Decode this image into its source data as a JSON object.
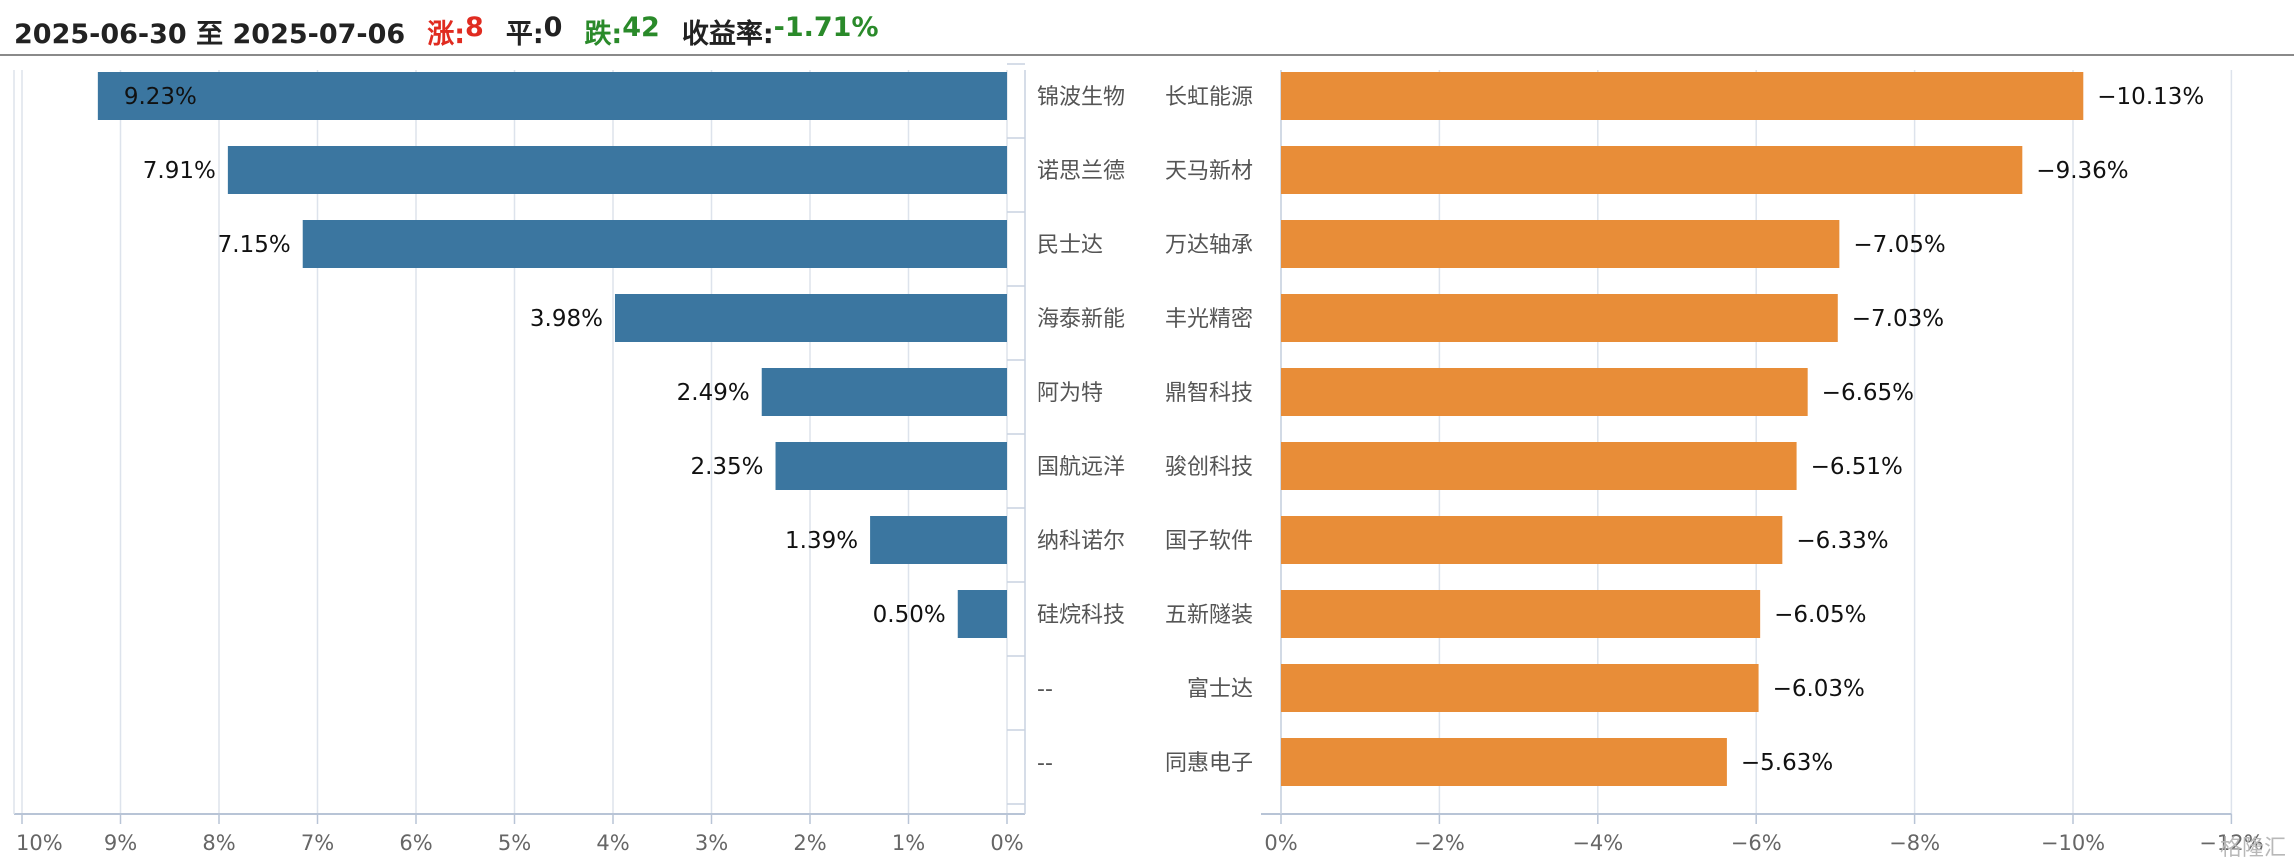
{
  "header": {
    "date_range": "2025-06-30 至 2025-07-06",
    "rise_label": "涨:",
    "rise_count": "8",
    "flat_label": "平:",
    "flat_count": "0",
    "fall_label": "跌:",
    "fall_count": "42",
    "return_label": "收益率:",
    "return_value": "-1.71%"
  },
  "watermark": "格隆汇",
  "chart_data": [
    {
      "type": "bar",
      "orientation": "horizontal",
      "categories": [
        "锦波生物",
        "诺思兰德",
        "民士达",
        "海泰新能",
        "阿为特",
        "国航远洋",
        "纳科诺尔",
        "硅烷科技",
        "--",
        "--"
      ],
      "values": [
        9.23,
        7.91,
        7.15,
        3.98,
        2.49,
        2.35,
        1.39,
        0.5,
        null,
        null
      ],
      "data_labels": [
        "9.23%",
        "7.91%",
        "7.15%",
        "3.98%",
        "2.49%",
        "2.35%",
        "1.39%",
        "0.50%",
        "",
        ""
      ],
      "xlim": [
        10,
        0
      ],
      "ticks": [
        10,
        9,
        8,
        7,
        6,
        5,
        4,
        3,
        2,
        1,
        0
      ],
      "tick_labels": [
        "10%",
        "9%",
        "8%",
        "7%",
        "6%",
        "5%",
        "4%",
        "3%",
        "2%",
        "1%",
        "0%"
      ],
      "grid": true,
      "color": "#3b76a0"
    },
    {
      "type": "bar",
      "orientation": "horizontal",
      "categories": [
        "长虹能源",
        "天马新材",
        "万达轴承",
        "丰光精密",
        "鼎智科技",
        "骏创科技",
        "国子软件",
        "五新隧装",
        "富士达",
        "同惠电子"
      ],
      "values": [
        -10.13,
        -9.36,
        -7.05,
        -7.03,
        -6.65,
        -6.51,
        -6.33,
        -6.05,
        -6.03,
        -5.63
      ],
      "data_labels": [
        "−10.13%",
        "−9.36%",
        "−7.05%",
        "−7.03%",
        "−6.65%",
        "−6.51%",
        "−6.33%",
        "−6.05%",
        "−6.03%",
        "−5.63%"
      ],
      "xlim": [
        0,
        -12
      ],
      "ticks": [
        0,
        -2,
        -4,
        -6,
        -8,
        -10,
        -12
      ],
      "tick_labels": [
        "0%",
        "−2%",
        "−4%",
        "−6%",
        "−8%",
        "−10%",
        "−12%"
      ],
      "grid": true,
      "color": "#e88d38"
    }
  ]
}
